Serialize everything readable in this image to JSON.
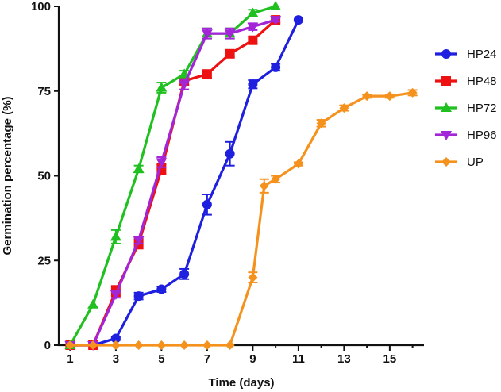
{
  "chart_data": {
    "type": "line",
    "title": "",
    "xlabel": "Time (days)",
    "ylabel": "Germination percentage (%)",
    "xlim": [
      0.5,
      16.5
    ],
    "ylim": [
      0,
      100
    ],
    "xticks": [
      1,
      3,
      5,
      7,
      9,
      11,
      13,
      15
    ],
    "yticks": [
      0,
      25,
      50,
      75,
      100
    ],
    "legend_position": "right",
    "series": [
      {
        "name": "HP24",
        "color": "#1f1fe0",
        "marker": "circle",
        "x": [
          1,
          2,
          3,
          4,
          5,
          6,
          7,
          8,
          9,
          10,
          11
        ],
        "y": [
          0,
          0,
          2,
          14.5,
          16.5,
          21,
          41.5,
          56.5,
          77,
          82,
          96
        ],
        "err": [
          0,
          0,
          0.5,
          1,
          0.8,
          1.5,
          3,
          3.5,
          1.2,
          1,
          0
        ]
      },
      {
        "name": "HP48",
        "color": "#ee1111",
        "marker": "square",
        "x": [
          1,
          2,
          3,
          4,
          5,
          6,
          7,
          8,
          9,
          10
        ],
        "y": [
          0,
          0,
          16,
          30,
          52,
          78,
          80,
          86,
          90,
          96
        ],
        "err": [
          0,
          0,
          1.5,
          1.5,
          1.5,
          1.2,
          1.2,
          1,
          1,
          0.8
        ]
      },
      {
        "name": "HP72",
        "color": "#1fc01f",
        "marker": "triangle-up",
        "x": [
          1,
          2,
          3,
          4,
          5,
          6,
          7,
          8,
          9,
          10
        ],
        "y": [
          0,
          12,
          32,
          52,
          76,
          80,
          92,
          92,
          98,
          100
        ],
        "err": [
          0,
          0,
          2,
          1,
          1.5,
          1,
          1.5,
          1.5,
          1,
          0
        ]
      },
      {
        "name": "HP96",
        "color": "#a325d8",
        "marker": "triangle-down",
        "x": [
          1,
          2,
          3,
          4,
          5,
          6,
          7,
          8,
          9,
          10
        ],
        "y": [
          0,
          0,
          15,
          31,
          54,
          77,
          92,
          92,
          94,
          96
        ],
        "err": [
          0,
          0,
          1,
          1,
          1.5,
          1.5,
          1.5,
          1.5,
          1,
          0.5
        ]
      },
      {
        "name": "UP",
        "color": "#f5921e",
        "marker": "diamond",
        "x": [
          1,
          2,
          3,
          4,
          5,
          6,
          7,
          8,
          9,
          9.5,
          10,
          11,
          12,
          13,
          14,
          15,
          16
        ],
        "y": [
          0,
          0,
          0,
          0,
          0,
          0,
          0,
          0,
          20,
          47,
          49,
          53.5,
          65.5,
          70,
          73.5,
          73.5,
          74.5
        ],
        "err": [
          0,
          0,
          0,
          0,
          0,
          0,
          0,
          0,
          1.5,
          2,
          1,
          0.5,
          1,
          0.8,
          0.5,
          0.5,
          0.8
        ]
      }
    ]
  }
}
